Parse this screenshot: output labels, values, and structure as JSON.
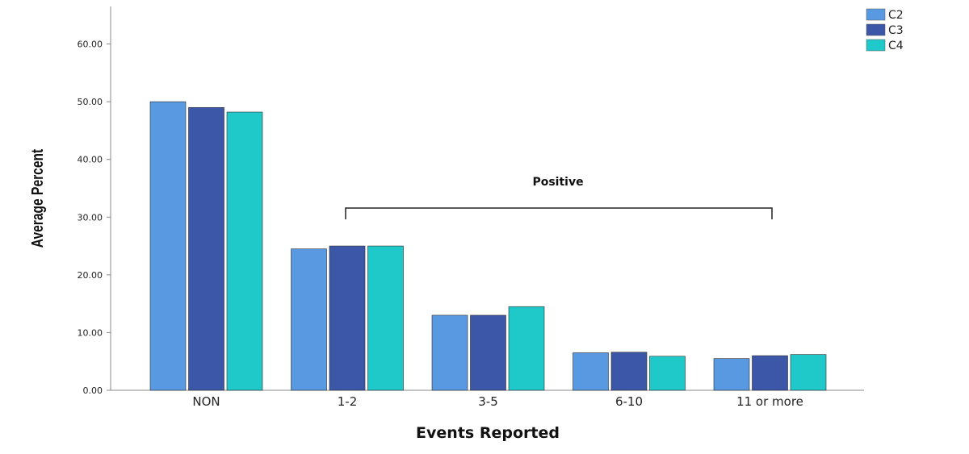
{
  "chart_data": {
    "type": "bar",
    "categories": [
      "NON",
      "1-2",
      "3-5",
      "6-10",
      "11 or more"
    ],
    "series": [
      {
        "name": "C2",
        "color": "#5899e2",
        "values": [
          50.0,
          24.5,
          13.0,
          6.5,
          5.5
        ]
      },
      {
        "name": "C3",
        "color": "#3c57a8",
        "values": [
          49.0,
          25.0,
          13.0,
          6.6,
          6.0
        ]
      },
      {
        "name": "C4",
        "color": "#1fc9c9",
        "values": [
          48.2,
          25.0,
          14.5,
          5.9,
          6.2
        ]
      }
    ],
    "title": "",
    "xlabel": "Events Reported",
    "ylabel": "Average Percent",
    "ylim": [
      0,
      66.5
    ],
    "yticks": [
      "0.00",
      "10.00",
      "20.00",
      "30.00",
      "40.00",
      "50.00",
      "60.00"
    ],
    "annotation": {
      "text": "Positive",
      "from_category": "1-2",
      "to_category": "11 or more"
    },
    "legend_position": "top-right",
    "grid": false
  }
}
